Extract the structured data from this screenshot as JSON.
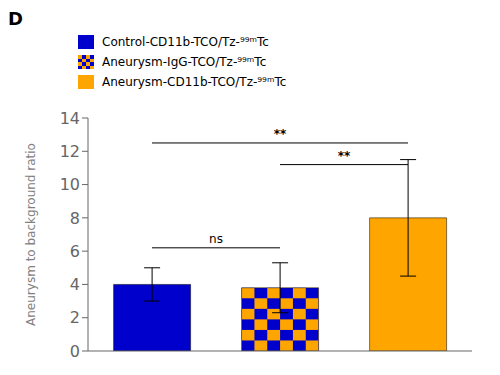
{
  "chart_data": {
    "type": "bar",
    "title": "D",
    "categories": [
      null,
      null,
      null
    ],
    "ylabel": "Aneurysm to background ratio",
    "ylim": [
      0,
      14
    ],
    "yticks": [
      0,
      2,
      4,
      6,
      8,
      10,
      12,
      14
    ],
    "tick_labels": "y",
    "series": [
      {
        "name": "Control-CD11b-TCO/Tz-⁹⁹ᵐTc",
        "color": "#0000cc",
        "values": [
          4.0,
          null,
          null
        ],
        "errors": [
          1.0,
          null,
          null
        ]
      },
      {
        "name": "Aneurysm-IgG-TCO/Tz-⁹⁹ᵐTc",
        "color": "#ffa500",
        "colors": [
          "#ffa500",
          "#0000cc"
        ],
        "values": [
          null,
          3.8,
          null
        ],
        "errors": [
          null,
          1.5,
          null
        ]
      },
      {
        "name": "Aneurysm-CD11b-TCO/Tz-⁹⁹ᵐTc",
        "color": "#ffa500",
        "values": [
          null,
          null,
          8.0
        ],
        "errors": [
          null,
          null,
          3.5
        ]
      }
    ],
    "annotations": [
      {
        "x1": 0,
        "x2": 2,
        "y": 12.5,
        "label": "**"
      },
      {
        "x1": 1,
        "x2": 2,
        "y": 11.2,
        "label": "**"
      },
      {
        "x1": 0,
        "x2": 1,
        "y": 6.2,
        "label": "ns"
      }
    ]
  }
}
